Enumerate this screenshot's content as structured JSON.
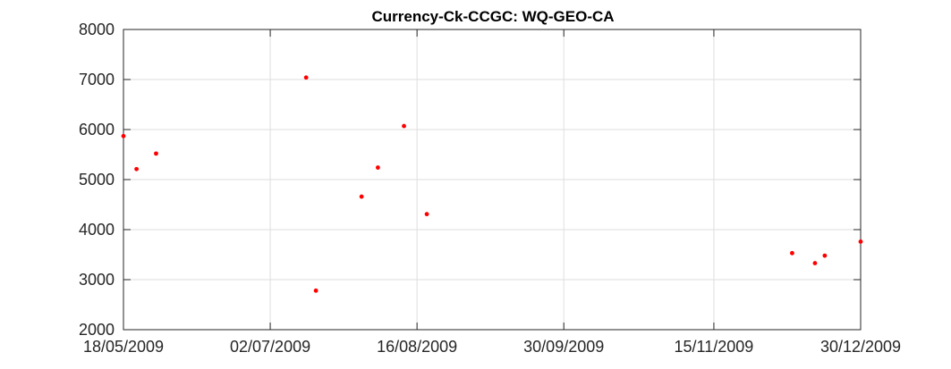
{
  "chart_data": {
    "type": "scatter",
    "title": "Currency-Ck-CCGC: WQ-GEO-CA",
    "xlabel": "",
    "ylabel": "",
    "x_type": "date",
    "xlim": [
      "2009-05-18",
      "2009-12-30"
    ],
    "ylim": [
      2000,
      8000
    ],
    "x_ticks": [
      "2009-05-18",
      "2009-07-02",
      "2009-08-16",
      "2009-09-30",
      "2009-11-15",
      "2009-12-30"
    ],
    "x_tick_labels": [
      "18/05/2009",
      "02/07/2009",
      "16/08/2009",
      "30/09/2009",
      "15/11/2009",
      "30/12/2009"
    ],
    "y_ticks": [
      2000,
      3000,
      4000,
      5000,
      6000,
      7000,
      8000
    ],
    "y_tick_labels": [
      "2000",
      "3000",
      "4000",
      "5000",
      "6000",
      "7000",
      "8000"
    ],
    "grid": true,
    "marker_color": "#ff0000",
    "series": [
      {
        "points": [
          {
            "x": "2009-05-18",
            "y": 5870
          },
          {
            "x": "2009-05-22",
            "y": 5210
          },
          {
            "x": "2009-05-28",
            "y": 5520
          },
          {
            "x": "2009-07-13",
            "y": 7040
          },
          {
            "x": "2009-07-16",
            "y": 2780
          },
          {
            "x": "2009-07-30",
            "y": 4660
          },
          {
            "x": "2009-08-04",
            "y": 5240
          },
          {
            "x": "2009-08-12",
            "y": 6070
          },
          {
            "x": "2009-08-19",
            "y": 4310
          },
          {
            "x": "2009-12-09",
            "y": 3530
          },
          {
            "x": "2009-12-16",
            "y": 3330
          },
          {
            "x": "2009-12-19",
            "y": 3480
          },
          {
            "x": "2009-12-30",
            "y": 3760
          }
        ]
      }
    ]
  }
}
